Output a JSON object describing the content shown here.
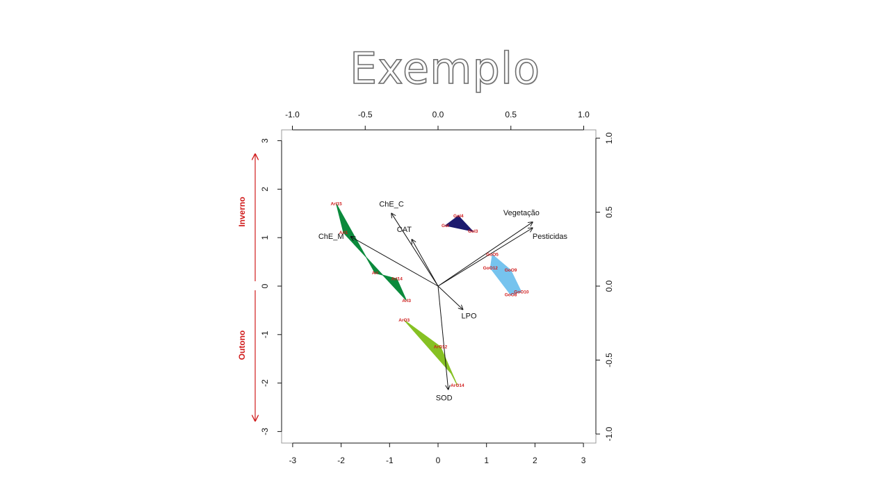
{
  "slide": {
    "title": "Exemplo"
  },
  "colors": {
    "frame": "#999999",
    "arrow": "#111111",
    "label_red": "#d01c1c",
    "season_arrow": "#d01c1c"
  },
  "chart_data": {
    "type": "scatter",
    "subtype": "biplot",
    "title": "",
    "xlabel": "",
    "ylabel": "",
    "xlim": [
      -3.1,
      3.25
    ],
    "ylim": [
      -3.2,
      3.25
    ],
    "bottom_axis_ticks": [
      -3,
      -2,
      -1,
      0,
      1,
      2,
      3
    ],
    "left_axis_ticks": [
      -3,
      -2,
      -1,
      0,
      1,
      2,
      3
    ],
    "top_axis_ticks": [
      "-1.0",
      "-0.5",
      "0.0",
      "0.5",
      "1.0"
    ],
    "right_axis_ticks": [
      "1.0",
      "0.5",
      "0.0",
      "-0.5",
      "-1.0"
    ],
    "loadings_scale": 3,
    "groups": [
      {
        "color": "#0b8a3c",
        "points": [
          {
            "label": "ArI15",
            "x": -2.1,
            "y": 1.7
          },
          {
            "label": "ArI1",
            "x": -1.95,
            "y": 1.1
          },
          {
            "label": "ArI",
            "x": -1.3,
            "y": 0.27
          },
          {
            "label": "ArI14",
            "x": -0.85,
            "y": 0.15
          },
          {
            "label": "ArI3",
            "x": -0.65,
            "y": -0.3
          }
        ]
      },
      {
        "color": "#1c1a6e",
        "points": [
          {
            "label": "GoI4",
            "x": 0.42,
            "y": 1.45
          },
          {
            "label": "GoI",
            "x": 0.15,
            "y": 1.25
          },
          {
            "label": "GoI3",
            "x": 0.72,
            "y": 1.13
          }
        ]
      },
      {
        "color": "#76c3ee",
        "points": [
          {
            "label": "GoO5",
            "x": 1.12,
            "y": 0.65
          },
          {
            "label": "GoO12",
            "x": 1.08,
            "y": 0.37
          },
          {
            "label": "GoO9",
            "x": 1.5,
            "y": 0.33
          },
          {
            "label": "GoO10",
            "x": 1.72,
            "y": -0.12
          },
          {
            "label": "GoO8",
            "x": 1.5,
            "y": -0.18
          }
        ]
      },
      {
        "color": "#86c123",
        "points": [
          {
            "label": "ArO3",
            "x": -0.7,
            "y": -0.7
          },
          {
            "label": "ArO12",
            "x": 0.05,
            "y": -1.25
          },
          {
            "label": "ArO14",
            "x": 0.4,
            "y": -2.05
          }
        ]
      }
    ],
    "polygons": [
      {
        "color": "#0b8a3c",
        "x": [
          -2.1,
          -1.95,
          -0.65,
          -0.85,
          -1.3
        ],
        "y": [
          1.7,
          1.1,
          -0.3,
          0.15,
          0.27
        ]
      },
      {
        "color": "#1c1a6e",
        "x": [
          0.42,
          0.15,
          0.72
        ],
        "y": [
          1.45,
          1.25,
          1.13
        ]
      },
      {
        "color": "#76c3ee",
        "x": [
          1.12,
          1.08,
          1.5,
          1.72,
          1.5
        ],
        "y": [
          0.65,
          0.37,
          -0.18,
          -0.12,
          0.33
        ]
      },
      {
        "color": "#86c123",
        "x": [
          -0.7,
          0.05,
          0.4,
          0.27
        ],
        "y": [
          -0.7,
          -1.25,
          -2.05,
          -1.8
        ]
      }
    ],
    "variables": [
      {
        "name": "ChE_C",
        "x": -0.32,
        "y": 0.5
      },
      {
        "name": "CAT",
        "x": -0.18,
        "y": 0.32
      },
      {
        "name": "ChE_M",
        "x": -0.6,
        "y": 0.34
      },
      {
        "name": "Vegetação",
        "x": 0.65,
        "y": 0.44
      },
      {
        "name": "Pesticidas",
        "x": 0.65,
        "y": 0.4
      },
      {
        "name": "LPO",
        "x": 0.17,
        "y": -0.16
      },
      {
        "name": "SOD",
        "x": 0.07,
        "y": -0.71
      }
    ],
    "annotations": [
      {
        "text": "Inverno",
        "direction": "up"
      },
      {
        "text": "Outono",
        "direction": "down"
      }
    ]
  }
}
